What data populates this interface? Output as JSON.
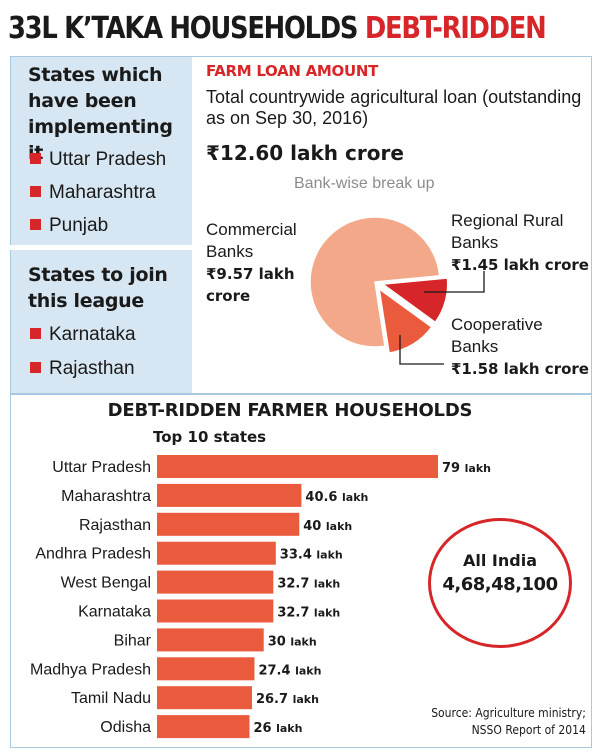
{
  "headline": {
    "part1": "33L K’TAKA HOUSEHOLDS ",
    "part2": "DEBT-RIDDEN"
  },
  "states": {
    "implementing_heading": "States which have been implementing it",
    "implementing": [
      "Uttar Pradesh",
      "Maharashtra",
      "Punjab"
    ],
    "join_heading": "States to join this league",
    "join": [
      "Karnataka",
      "Rajasthan"
    ]
  },
  "farm_loan": {
    "title": "FARM LOAN AMOUNT",
    "subtitle": "Total countrywide agricultural loan (outstanding as on Sep 30, 2016)",
    "total": "₹12.60 lakh crore",
    "breakup_caption": "Bank-wise break up"
  },
  "colors": {
    "accent_red": "#d7262a",
    "bar": "#ea5a3c",
    "pie_commercial": "#f4a88a",
    "pie_cooperative": "#ea5a3c",
    "pie_rrb": "#d7262a",
    "panel_blue": "#d6e7f3"
  },
  "chart_data": [
    {
      "type": "pie",
      "title": "Bank-wise break up",
      "unit": "lakh crore",
      "slices": [
        {
          "label": "Commercial Banks",
          "value": 9.57,
          "value_text": "₹9.57 lakh crore"
        },
        {
          "label": "Regional Rural Banks",
          "value": 1.45,
          "value_text": "₹1.45 lakh crore"
        },
        {
          "label": "Cooperative Banks",
          "value": 1.58,
          "value_text": "₹1.58 lakh crore"
        }
      ]
    },
    {
      "type": "bar",
      "orientation": "horizontal",
      "title": "DEBT-RIDDEN FARMER HOUSEHOLDS",
      "subtitle": "Top 10 states",
      "unit": "lakh",
      "categories": [
        "Uttar Pradesh",
        "Maharashtra",
        "Rajasthan",
        "Andhra Pradesh",
        "West Bengal",
        "Karnataka",
        "Bihar",
        "Madhya Pradesh",
        "Tamil Nadu",
        "Odisha"
      ],
      "values": [
        79,
        40.6,
        40,
        33.4,
        32.7,
        32.7,
        30,
        27.4,
        26.7,
        26
      ],
      "value_labels": [
        "79 lakh",
        "40.6 lakh",
        "40 lakh",
        "33.4 lakh",
        "32.7 lakh",
        "32.7 lakh",
        "30 lakh",
        "27.4 lakh",
        "26.7 lakh",
        "26 lakh"
      ]
    }
  ],
  "all_india": {
    "label": "All India",
    "value": "4,68,48,100"
  },
  "source": {
    "line1": "Source: Agriculture ministry;",
    "line2": "NSSO Report of 2014"
  }
}
